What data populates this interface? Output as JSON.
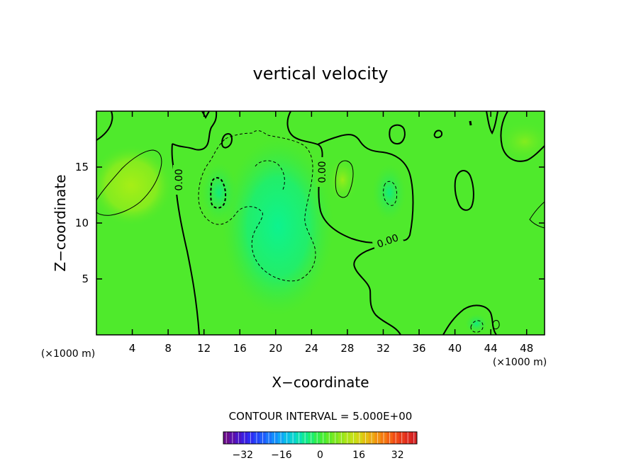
{
  "chart_data": {
    "type": "contour",
    "title": "vertical velocity",
    "xlabel": "X−coordinate",
    "ylabel": "Z−coordinate",
    "x_unit_left": "(×1000 m)",
    "x_unit_right": "(×1000 m)",
    "xlim": [
      0,
      50
    ],
    "ylim": [
      0,
      20
    ],
    "xticks": [
      4,
      8,
      12,
      16,
      20,
      24,
      28,
      32,
      36,
      40,
      44,
      48
    ],
    "xtick_labels": [
      "4",
      "8",
      "12",
      "16",
      "20",
      "24",
      "28",
      "32",
      "36",
      "40",
      "44",
      "48"
    ],
    "yticks": [
      5,
      10,
      15
    ],
    "ytick_labels": [
      "5",
      "10",
      "15"
    ],
    "contour_interval_text": "CONTOUR INTERVAL = 5.000E+00",
    "contour_labels": [
      {
        "text": "0.00",
        "x": 9.2,
        "y": 13.8,
        "rotation": -90
      },
      {
        "text": "0.00",
        "x": 25.3,
        "y": 14.8,
        "rotation": -90
      },
      {
        "text": "0.00",
        "x": 32.5,
        "y": 8.6,
        "rotation": -20
      }
    ],
    "colorbar": {
      "min": -40,
      "max": 40,
      "ticks": [
        -32,
        -16,
        0,
        16,
        32
      ],
      "tick_labels": [
        "−32",
        "−16",
        "0",
        "16",
        "32"
      ]
    },
    "features": [
      {
        "kind": "positive_max",
        "x": 4.5,
        "y": 13.5
      },
      {
        "kind": "negative_min",
        "x": 20.5,
        "y": 9.0
      },
      {
        "kind": "negative_min",
        "x": 13.5,
        "y": 12.8
      },
      {
        "kind": "positive_max",
        "x": 27.5,
        "y": 14.0
      },
      {
        "kind": "negative_min",
        "x": 32.5,
        "y": 12.5
      }
    ],
    "grid": false
  }
}
